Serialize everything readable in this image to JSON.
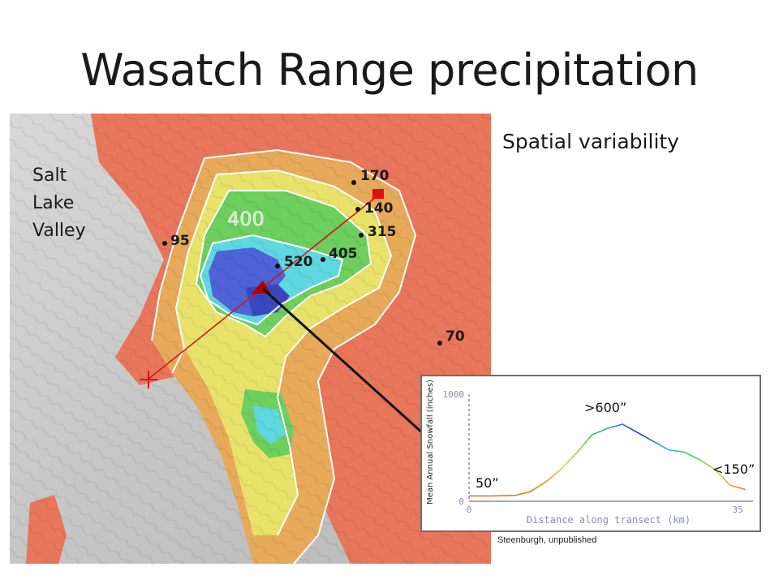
{
  "slide": {
    "title": "Wasatch Range precipitation",
    "side_heading": "Spatial variability",
    "credit": "Steenburgh, unpublished"
  },
  "map": {
    "region_label": [
      "Salt",
      "Lake",
      "Valley"
    ],
    "contour_label": "400",
    "stations": [
      {
        "label": "170"
      },
      {
        "label": "140"
      },
      {
        "label": "315"
      },
      {
        "label": "95"
      },
      {
        "label": "405"
      },
      {
        "label": "520"
      },
      {
        "label": "70"
      }
    ],
    "colors": {
      "lowland_gray": "#cfcfcf",
      "band_red": "#e8765a",
      "band_orange": "#e7a95a",
      "band_yellow": "#e8e26a",
      "band_green": "#6ccf5e",
      "band_cyan": "#5fd8e0",
      "band_blue": "#4f62d6",
      "contour_white": "#ffffff",
      "transect_red": "#d01818",
      "marker_red": "#e01010",
      "marker_darkred": "#b00000"
    }
  },
  "chart_data": {
    "type": "line",
    "title": "",
    "xlabel": "Distance along transect (km)",
    "ylabel": "Mean Annual Snowfall (inches)",
    "x_ticks": [
      "0",
      "35"
    ],
    "y_ticks": [
      "0",
      "1000"
    ],
    "xlim": [
      0,
      37
    ],
    "ylim": [
      0,
      1000
    ],
    "grid": false,
    "annotations": [
      ">600”",
      "50”",
      "<150”"
    ],
    "series": [
      {
        "x": [
          0,
          3,
          6,
          8,
          10,
          12,
          14,
          16,
          18,
          20,
          22,
          24,
          26,
          28,
          30,
          32,
          34,
          36
        ],
        "y": [
          50,
          50,
          55,
          90,
          180,
          300,
          450,
          620,
          680,
          720,
          640,
          560,
          480,
          460,
          390,
          300,
          150,
          110
        ]
      }
    ]
  }
}
